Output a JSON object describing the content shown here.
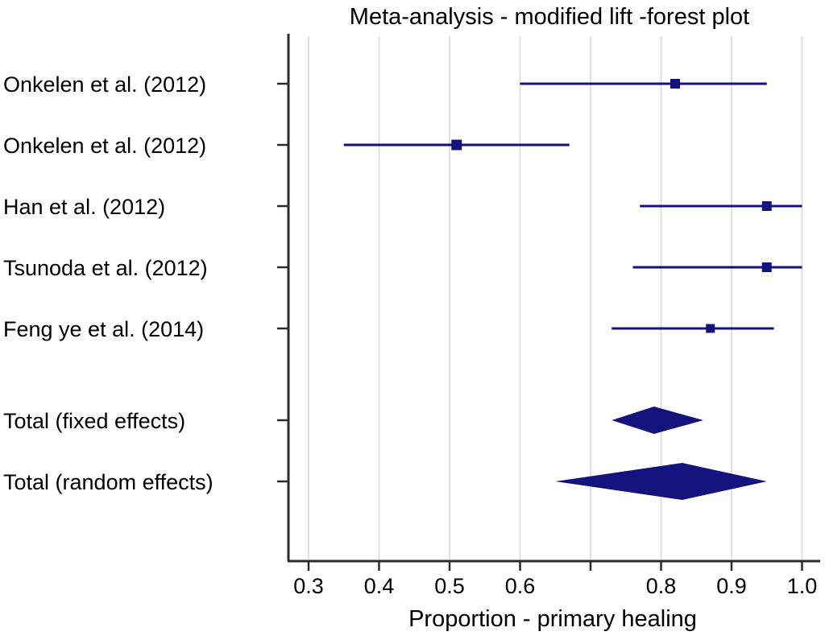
{
  "chart_data": {
    "type": "forest",
    "title": "Meta-analysis - modified lift -forest plot",
    "xlabel": "Proportion - primary healing",
    "xlim": [
      0.27,
      1.02
    ],
    "xticks": [
      0.3,
      0.4,
      0.5,
      0.6,
      0.7,
      0.8,
      0.9,
      1.0
    ],
    "xtick_labels": [
      "0.3",
      "0.4",
      "0.5",
      "0.6",
      "",
      "0.8",
      "0.9",
      "1.0"
    ],
    "grid": "vertical",
    "legend": "none",
    "colors": {
      "marker": "#14137e",
      "line": "#14137e",
      "diamond": "#14137e",
      "grid": "#d9d9d9",
      "axis": "#2b2b2b",
      "text": "#000000"
    },
    "studies": [
      {
        "label": "Onkelen et al. (2012)",
        "estimate": 0.82,
        "ci_low": 0.6,
        "ci_high": 0.95,
        "marker_size": 12
      },
      {
        "label": "Onkelen et al. (2012)",
        "estimate": 0.51,
        "ci_low": 0.35,
        "ci_high": 0.67,
        "marker_size": 13
      },
      {
        "label": "Han et al. (2012)",
        "estimate": 0.95,
        "ci_low": 0.77,
        "ci_high": 1.0,
        "marker_size": 12
      },
      {
        "label": "Tsunoda et al. (2012)",
        "estimate": 0.95,
        "ci_low": 0.76,
        "ci_high": 1.0,
        "marker_size": 12
      },
      {
        "label": "Feng ye et al. (2014)",
        "estimate": 0.87,
        "ci_low": 0.73,
        "ci_high": 0.96,
        "marker_size": 11
      }
    ],
    "totals": [
      {
        "label": "Total (fixed effects)",
        "estimate": 0.79,
        "ci_low": 0.73,
        "ci_high": 0.86
      },
      {
        "label": "Total (random effects)",
        "estimate": 0.83,
        "ci_low": 0.65,
        "ci_high": 0.95
      }
    ]
  }
}
